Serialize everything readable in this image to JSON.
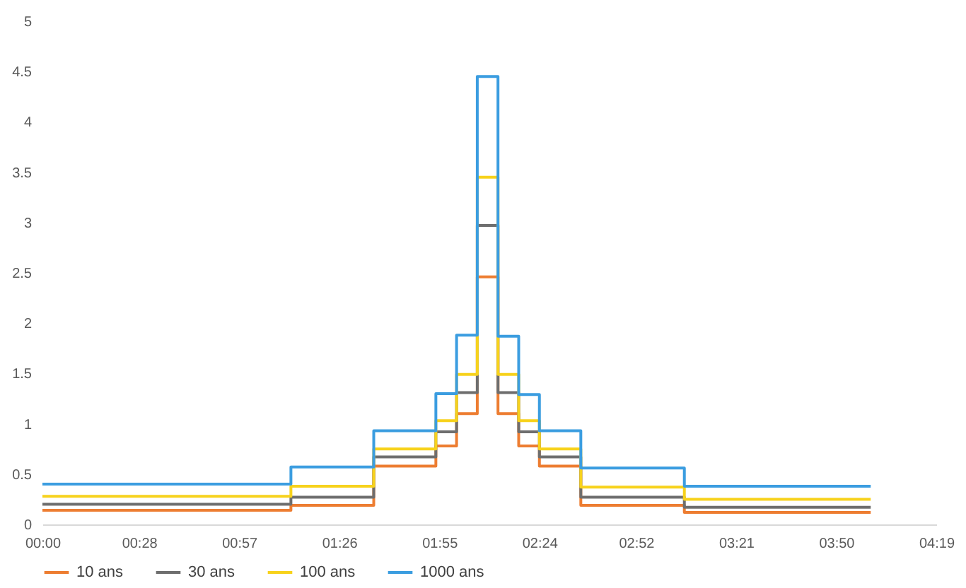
{
  "chart_data": {
    "type": "step",
    "x": [
      0,
      1.2,
      1.6,
      1.9,
      2.0,
      2.1,
      2.2,
      2.3,
      2.4,
      2.6,
      3.1,
      4.0
    ],
    "series": [
      {
        "name": "10 ans",
        "color": "#ed7d31",
        "values": [
          0.14,
          0.19,
          0.58,
          0.78,
          1.1,
          2.46,
          1.1,
          0.78,
          0.58,
          0.19,
          0.12,
          0.12
        ]
      },
      {
        "name": "30 ans",
        "color": "#6e6e6e",
        "values": [
          0.2,
          0.27,
          0.67,
          0.92,
          1.31,
          2.97,
          1.31,
          0.92,
          0.67,
          0.27,
          0.17,
          0.17
        ]
      },
      {
        "name": "100 ans",
        "color": "#f7d21c",
        "values": [
          0.28,
          0.38,
          0.75,
          1.03,
          1.49,
          3.45,
          1.49,
          1.03,
          0.75,
          0.37,
          0.25,
          0.25
        ]
      },
      {
        "name": "1000 ans",
        "color": "#3b9de0",
        "values": [
          0.4,
          0.57,
          0.93,
          1.3,
          1.88,
          4.45,
          1.87,
          1.29,
          0.93,
          0.56,
          0.38,
          0.38
        ]
      }
    ],
    "xlim": [
      0,
      4.3167
    ],
    "xticks": [
      {
        "value": 0,
        "label": "00:00"
      },
      {
        "value": 0.4667,
        "label": "00:28"
      },
      {
        "value": 0.95,
        "label": "00:57"
      },
      {
        "value": 1.4333,
        "label": "01:26"
      },
      {
        "value": 1.9167,
        "label": "01:55"
      },
      {
        "value": 2.4,
        "label": "02:24"
      },
      {
        "value": 2.8667,
        "label": "02:52"
      },
      {
        "value": 3.35,
        "label": "03:21"
      },
      {
        "value": 3.8333,
        "label": "03:50"
      },
      {
        "value": 4.3167,
        "label": "04:19"
      }
    ],
    "ylim": [
      0,
      5
    ],
    "yticks": [
      0,
      0.5,
      1,
      1.5,
      2,
      2.5,
      3,
      3.5,
      4,
      4.5,
      5
    ],
    "legend": "bottom",
    "line_style": "solid"
  }
}
